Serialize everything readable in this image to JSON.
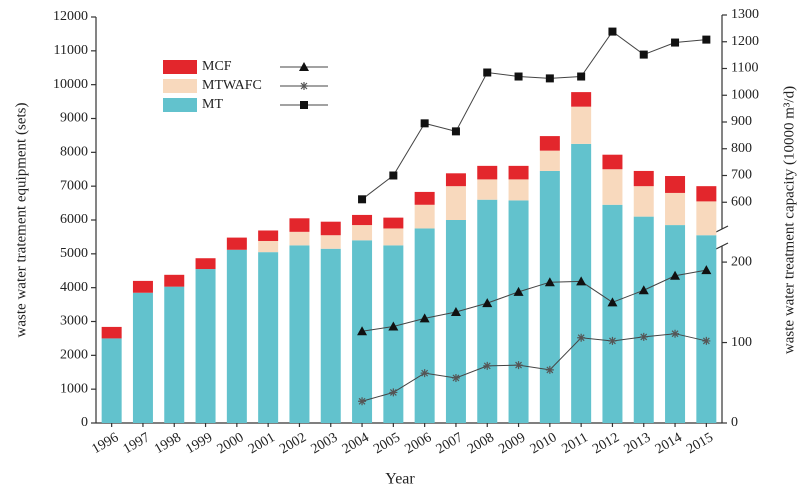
{
  "chart_data": {
    "type": "bar",
    "xlabel": "Year",
    "ylabel": "waste water tratement equipment (sets)",
    "y2label": "waste water treatment capacity (10000 m³/d)",
    "categories": [
      "1996",
      "1997",
      "1998",
      "1999",
      "2000",
      "2001",
      "2002",
      "2003",
      "2004",
      "2005",
      "2006",
      "2007",
      "2008",
      "2009",
      "2010",
      "2011",
      "2012",
      "2013",
      "2014",
      "2015"
    ],
    "ylim": [
      0,
      12000
    ],
    "yticks": [
      0,
      1000,
      2000,
      3000,
      4000,
      5000,
      6000,
      7000,
      8000,
      9000,
      10000,
      11000,
      12000
    ],
    "y2_segments": [
      {
        "lim": [
          0,
          220
        ],
        "ticks": [
          0,
          100,
          200
        ]
      },
      {
        "lim": [
          500,
          1300
        ],
        "ticks": [
          600,
          700,
          800,
          900,
          1000,
          1100,
          1200,
          1300
        ]
      }
    ],
    "series": [
      {
        "name": "MCF",
        "color": "#e3262c",
        "line_marker": "triangle",
        "values": [
          340,
          350,
          350,
          320,
          360,
          310,
          400,
          400,
          300,
          320,
          380,
          380,
          400,
          400,
          430,
          430,
          430,
          450,
          500,
          450
        ],
        "line_values": [
          null,
          null,
          null,
          null,
          null,
          null,
          null,
          null,
          114,
          120,
          130,
          138,
          149,
          163,
          175,
          176,
          150,
          165,
          183,
          190
        ]
      },
      {
        "name": "MTWAFC",
        "color": "#f8d9bd",
        "line_marker": "star",
        "values": [
          0,
          0,
          0,
          0,
          0,
          330,
          400,
          400,
          450,
          500,
          700,
          1000,
          600,
          620,
          600,
          1100,
          1050,
          900,
          950,
          1000
        ],
        "line_values": [
          null,
          null,
          null,
          null,
          null,
          null,
          null,
          null,
          27,
          38,
          62,
          56,
          71,
          72,
          66,
          106,
          102,
          107,
          111,
          102
        ]
      },
      {
        "name": "MT",
        "color": "#62c2cd",
        "line_marker": "square",
        "values": [
          2500,
          3850,
          4030,
          4550,
          5120,
          5050,
          5250,
          5150,
          5400,
          5250,
          5750,
          6000,
          6600,
          6580,
          7450,
          8250,
          6450,
          6100,
          5850,
          5550
        ],
        "line_values": [
          null,
          null,
          null,
          null,
          null,
          null,
          null,
          null,
          611,
          700,
          895,
          865,
          1085,
          1070,
          1063,
          1070,
          1238,
          1152,
          1197,
          1208
        ]
      }
    ]
  }
}
